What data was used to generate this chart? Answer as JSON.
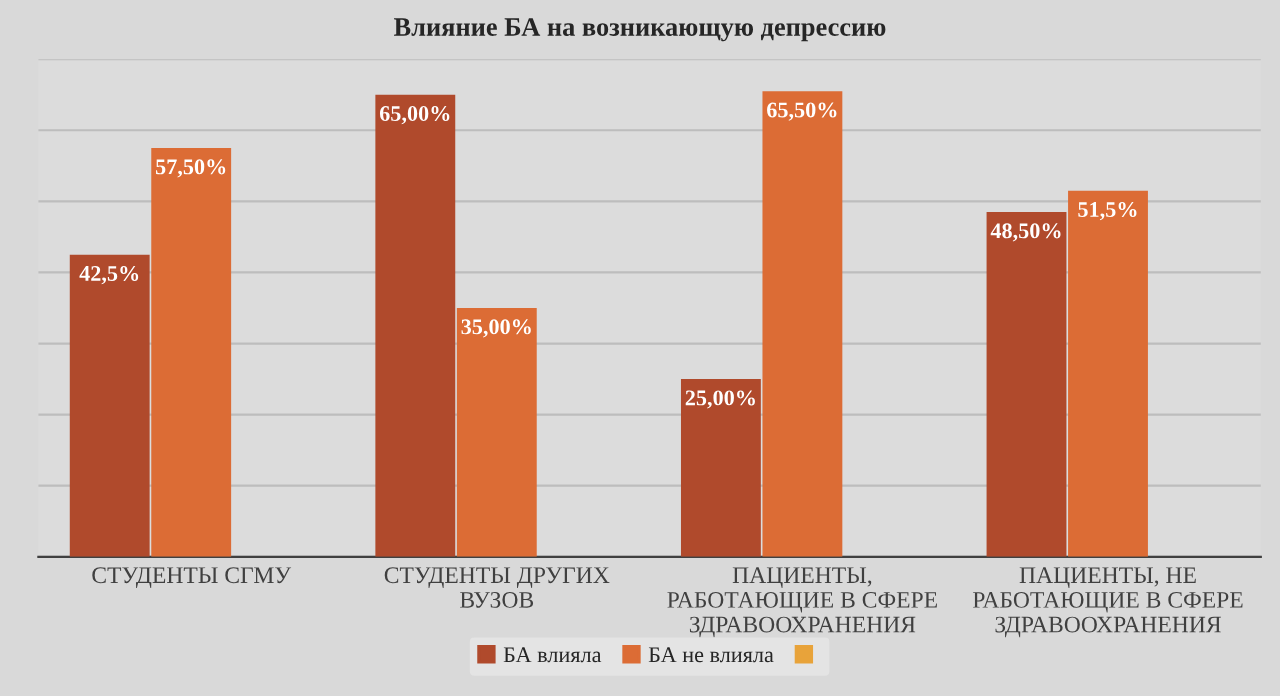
{
  "chart_data": {
    "type": "bar",
    "title": "Влияние БА на возникающую депрессию",
    "categories": [
      "СТУДЕНТЫ СГМУ",
      "СТУДЕНТЫ ДРУГИХ ВУЗОВ",
      "ПАЦИЕНТЫ, РАБОТАЮЩИЕ В СФЕРЕ ЗДРАВООХРАНЕНИЯ",
      "ПАЦИЕНТЫ, НЕ РАБОТАЮЩИЕ В СФЕРЕ ЗДРАВООХРАНЕНИЯ"
    ],
    "series": [
      {
        "name": "БА влияла",
        "color": "#b04a2c",
        "values": [
          42.5,
          65,
          25,
          48.5
        ],
        "value_labels": [
          "42,5%",
          "65,00%",
          "25,00%",
          "48,50%"
        ]
      },
      {
        "name": "БА не влияла",
        "color": "#dc6c35",
        "values": [
          57.5,
          35,
          65.5,
          51.5
        ],
        "value_labels": [
          "57,50%",
          "35,00%",
          "65,50%",
          "51,5%"
        ]
      },
      {
        "color": "#e8a33a",
        "values": [
          null,
          null,
          null,
          null
        ]
      }
    ],
    "ylim": [
      0,
      70
    ],
    "yticks": [
      {
        "value": 0,
        "label": null
      },
      {
        "value": 10,
        "label": null
      },
      {
        "value": 20,
        "label": null
      },
      {
        "value": 30,
        "label": null
      },
      {
        "value": 40,
        "label": null
      },
      {
        "value": 50,
        "label": null
      },
      {
        "value": 60,
        "label": null
      },
      {
        "value": 70,
        "label": null
      }
    ],
    "tick_labels": "x",
    "grid": "y",
    "legend": "bottom"
  }
}
